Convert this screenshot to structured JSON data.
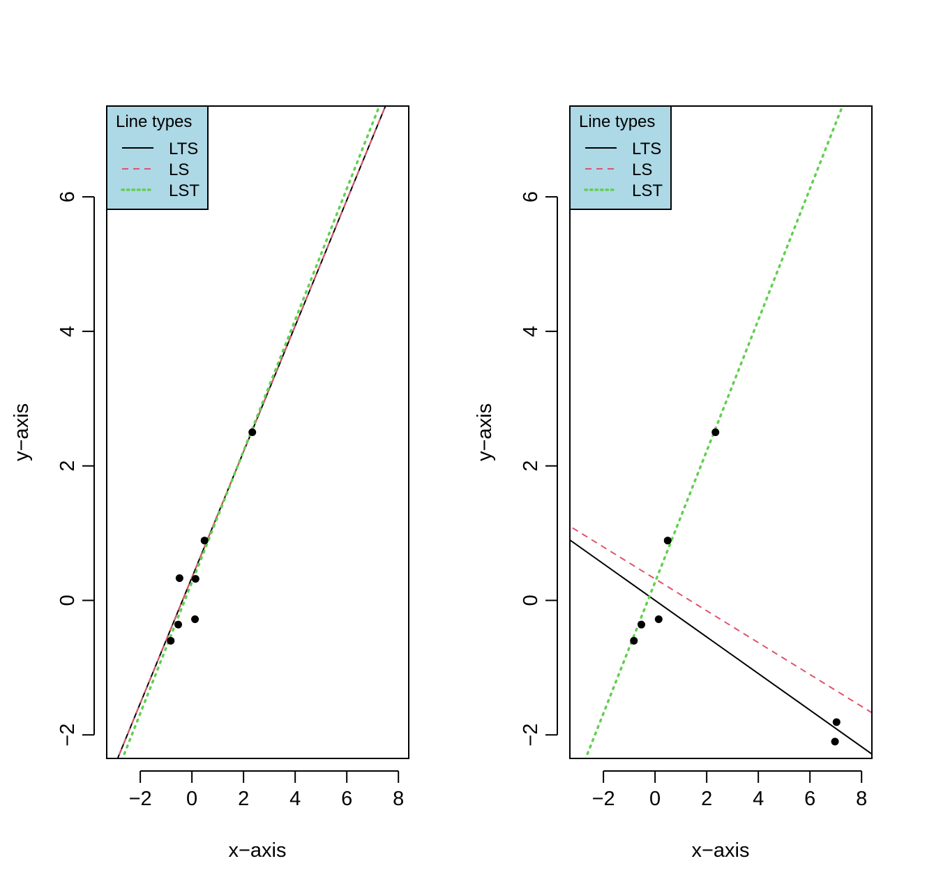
{
  "chart_data": [
    {
      "type": "scatter",
      "xlabel": "x−axis",
      "ylabel": "y−axis",
      "xlim": [
        -3.3,
        8.4
      ],
      "ylim": [
        -2.35,
        7.35
      ],
      "xticks": [
        -2,
        0,
        2,
        4,
        6,
        8
      ],
      "yticks": [
        -2,
        0,
        2,
        4,
        6
      ],
      "xtick_labels": [
        "−2",
        "0",
        "2",
        "4",
        "6",
        "8"
      ],
      "ytick_labels": [
        "−2",
        "0",
        "2",
        "4",
        "6"
      ],
      "grid": false,
      "points": [
        {
          "x": -0.82,
          "y": -0.6
        },
        {
          "x": -0.53,
          "y": -0.36
        },
        {
          "x": -0.48,
          "y": 0.33
        },
        {
          "x": 0.14,
          "y": 0.32
        },
        {
          "x": 0.12,
          "y": -0.28
        },
        {
          "x": 0.49,
          "y": 0.89
        },
        {
          "x": 2.34,
          "y": 2.5
        }
      ],
      "lines": [
        {
          "name": "LTS",
          "intercept": 0.34,
          "slope": 0.935,
          "color": "#000000",
          "dash": "solid"
        },
        {
          "name": "LS",
          "intercept": 0.345,
          "slope": 0.935,
          "color": "#DF536B",
          "dash": "dashed"
        },
        {
          "name": "LST",
          "intercept": 0.27,
          "slope": 0.975,
          "color": "#61D04F",
          "dash": "dotted"
        }
      ],
      "legend": {
        "title": "Line types",
        "entries": [
          "LTS",
          "LS",
          "LST"
        ],
        "position": "top-left",
        "background": "#ADD8E6"
      }
    },
    {
      "type": "scatter",
      "xlabel": "x−axis",
      "ylabel": "y−axis",
      "xlim": [
        -3.3,
        8.4
      ],
      "ylim": [
        -2.35,
        7.35
      ],
      "xticks": [
        -2,
        0,
        2,
        4,
        6,
        8
      ],
      "yticks": [
        -2,
        0,
        2,
        4,
        6
      ],
      "xtick_labels": [
        "−2",
        "0",
        "2",
        "4",
        "6",
        "8"
      ],
      "ytick_labels": [
        "−2",
        "0",
        "2",
        "4",
        "6"
      ],
      "grid": false,
      "points": [
        {
          "x": -0.82,
          "y": -0.6
        },
        {
          "x": -0.53,
          "y": -0.36
        },
        {
          "x": 0.14,
          "y": -0.28
        },
        {
          "x": 0.49,
          "y": 0.89
        },
        {
          "x": 2.34,
          "y": 2.5
        },
        {
          "x": 7.03,
          "y": -1.81
        },
        {
          "x": 6.97,
          "y": -2.1
        }
      ],
      "lines": [
        {
          "name": "LTS",
          "intercept": -0.0,
          "slope": -0.272,
          "color": "#000000",
          "dash": "solid"
        },
        {
          "name": "LS",
          "intercept": 0.32,
          "slope": -0.237,
          "color": "#DF536B",
          "dash": "dashed"
        },
        {
          "name": "LST",
          "intercept": 0.27,
          "slope": 0.975,
          "color": "#61D04F",
          "dash": "dotted"
        }
      ],
      "legend": {
        "title": "Line types",
        "entries": [
          "LTS",
          "LS",
          "LST"
        ],
        "position": "top-left",
        "background": "#ADD8E6"
      }
    }
  ]
}
